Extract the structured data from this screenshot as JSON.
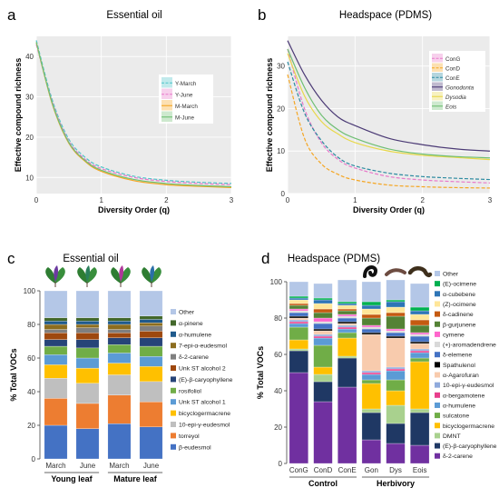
{
  "panels": {
    "a": {
      "label": "a",
      "title": "Essential oil"
    },
    "b": {
      "label": "b",
      "title": "Headspace (PDMS)"
    },
    "c": {
      "label": "c",
      "title": "Essential oil"
    },
    "d": {
      "label": "d",
      "title": "Headspace (PDMS)"
    }
  },
  "chart_data": [
    {
      "id": "a",
      "type": "line",
      "title": "Essential oil",
      "xlabel": "Diversity Order (q)",
      "ylabel": "Effective compound richness",
      "xlim": [
        0,
        3
      ],
      "ylim": [
        6,
        45
      ],
      "xticks": [
        "0",
        "1",
        "2",
        "3"
      ],
      "yticks": [
        "10",
        "20",
        "30",
        "40"
      ],
      "grid": true,
      "legend": "right",
      "x": [
        0,
        0.25,
        0.5,
        0.75,
        1,
        1.5,
        2,
        2.5,
        3
      ],
      "series": [
        {
          "name": "Y-March",
          "color": "#4ec3c9",
          "dash": true,
          "values": [
            44,
            29,
            19.5,
            15,
            12.6,
            10.3,
            9.3,
            8.8,
            8.5
          ]
        },
        {
          "name": "Y-June",
          "color": "#e879c9",
          "dash": true,
          "values": [
            43,
            28.5,
            19,
            14.5,
            12.2,
            10,
            9,
            8.5,
            8.2
          ]
        },
        {
          "name": "M-March",
          "color": "#f5a623",
          "dash": false,
          "values": [
            43.5,
            28,
            18.5,
            14,
            11.5,
            9.2,
            8.2,
            7.8,
            7.5
          ]
        },
        {
          "name": "M-June",
          "color": "#6fbf73",
          "dash": false,
          "values": [
            43.5,
            28.2,
            18.7,
            14.2,
            11.8,
            9.5,
            8.5,
            8,
            7.7
          ]
        }
      ]
    },
    {
      "id": "b",
      "type": "line",
      "title": "Headspace (PDMS)",
      "xlabel": "Diversity Order (q)",
      "ylabel": "Effective compound richness",
      "xlim": [
        0,
        3
      ],
      "ylim": [
        0,
        37
      ],
      "xticks": [
        "0",
        "1",
        "2",
        "3"
      ],
      "yticks": [
        "0",
        "10",
        "20",
        "30"
      ],
      "grid": true,
      "legend": "top-right",
      "x": [
        0,
        0.25,
        0.5,
        0.75,
        1,
        1.5,
        2,
        2.5,
        3
      ],
      "series": [
        {
          "name": "ConG",
          "color": "#e879c9",
          "dash": true,
          "values": [
            34,
            20,
            12,
            8,
            6,
            4,
            3.2,
            2.8,
            2.5
          ]
        },
        {
          "name": "ConD",
          "color": "#f5a623",
          "dash": true,
          "values": [
            28,
            13,
            7,
            4.5,
            3.2,
            2,
            1.6,
            1.4,
            1.3
          ]
        },
        {
          "name": "ConE",
          "color": "#2c8aa0",
          "dash": true,
          "values": [
            31,
            19,
            12.5,
            8.5,
            6.5,
            4.8,
            4,
            3.6,
            3.3
          ]
        },
        {
          "name": "Gonodonta",
          "color": "#4b3a75",
          "dash": false,
          "values": [
            36,
            28,
            22,
            18,
            16,
            13,
            11.5,
            10.5,
            10
          ]
        },
        {
          "name": "Dysodia",
          "color": "#e8d84a",
          "dash": false,
          "values": [
            33,
            23,
            17,
            14,
            12,
            10,
            9,
            8.5,
            8
          ]
        },
        {
          "name": "Eois",
          "color": "#6fbf73",
          "dash": false,
          "values": [
            34,
            25,
            18.5,
            15,
            13,
            10.5,
            9.3,
            8.7,
            8.4
          ]
        }
      ]
    },
    {
      "id": "c",
      "type": "bar",
      "stacked": true,
      "title": "Essential oil",
      "ylabel": "% Total VOCs",
      "ylim": [
        0,
        100
      ],
      "yticks": [
        "0",
        "20",
        "40",
        "60",
        "80",
        "100"
      ],
      "legend": "right",
      "categories": [
        "March",
        "June",
        "March",
        "June"
      ],
      "groups": [
        "Young leaf",
        "Mature leaf"
      ],
      "series": [
        {
          "name": "β-eudesmol",
          "color": "#4472c4",
          "values": [
            20,
            18,
            21,
            19
          ]
        },
        {
          "name": "torreyol",
          "color": "#ed7d31",
          "values": [
            16,
            15,
            17,
            15
          ]
        },
        {
          "name": "10-epi-γ-eudesmol",
          "color": "#bfbfbf",
          "values": [
            12,
            12,
            12,
            12
          ]
        },
        {
          "name": "bicyclogermacrene",
          "color": "#ffc000",
          "values": [
            8,
            9,
            7,
            9
          ]
        },
        {
          "name": "Unk ST alcohol 1",
          "color": "#5b9bd5",
          "values": [
            6,
            6,
            6,
            6
          ]
        },
        {
          "name": "rosifoliol",
          "color": "#70ad47",
          "values": [
            5,
            6,
            5,
            6
          ]
        },
        {
          "name": "(E)-β-caryophyllene",
          "color": "#264478",
          "values": [
            4,
            5,
            4,
            5
          ]
        },
        {
          "name": "Unk ST alcohol 2",
          "color": "#9e480e",
          "values": [
            4,
            4,
            3,
            4
          ]
        },
        {
          "name": "δ-2-carene",
          "color": "#7f7f7f",
          "values": [
            2,
            3,
            2,
            3
          ]
        },
        {
          "name": "7-epi-α-eudesmol",
          "color": "#8c6d1f",
          "values": [
            3,
            2,
            3,
            2
          ]
        },
        {
          "name": "α-humulene",
          "color": "#1f5a8c",
          "values": [
            2,
            2,
            2,
            2
          ]
        },
        {
          "name": "α-pinene",
          "color": "#43682b",
          "values": [
            2,
            2,
            2,
            2
          ]
        },
        {
          "name": "Other",
          "color": "#b4c7e7",
          "values": [
            16,
            16,
            16,
            15
          ]
        }
      ]
    },
    {
      "id": "d",
      "type": "bar",
      "stacked": true,
      "title": "Headspace (PDMS)",
      "ylabel": "% Total VOCs",
      "ylim": [
        0,
        100
      ],
      "yticks": [
        "0",
        "20",
        "40",
        "60",
        "80",
        "100"
      ],
      "legend": "right",
      "categories": [
        "ConG",
        "ConD",
        "ConE",
        "Gon",
        "Dys",
        "Eois"
      ],
      "groups": [
        "Control",
        "Herbivory"
      ],
      "series": [
        {
          "name": "δ-2-carene",
          "color": "#7030a0",
          "values": [
            50,
            34,
            42,
            13,
            11,
            10
          ]
        },
        {
          "name": "(E)-β-caryophyllene",
          "color": "#1f3864",
          "values": [
            12,
            11,
            16,
            15,
            11,
            18
          ]
        },
        {
          "name": "DMNT",
          "color": "#a9d18e",
          "values": [
            1,
            4,
            1,
            2,
            10,
            2
          ]
        },
        {
          "name": "bicyclogermacrene",
          "color": "#ffc000",
          "values": [
            5,
            4,
            10,
            14,
            8,
            26
          ]
        },
        {
          "name": "sulcatone",
          "color": "#70ad47",
          "values": [
            7,
            12,
            3,
            2,
            6,
            2
          ]
        },
        {
          "name": "α-humulene",
          "color": "#5b9bd5",
          "values": [
            2,
            4,
            2,
            3,
            5,
            3
          ]
        },
        {
          "name": "α-bergamotene",
          "color": "#e83e8c",
          "values": [
            1,
            1,
            1,
            1,
            1,
            1
          ]
        },
        {
          "name": "10-epi-γ-eudesmol",
          "color": "#8faadc",
          "values": [
            1,
            1,
            1,
            1,
            1,
            1
          ]
        },
        {
          "name": "α-Agarofuran",
          "color": "#f8cbad",
          "values": [
            1,
            2,
            1,
            20,
            16,
            3
          ]
        },
        {
          "name": "Spathulenol",
          "color": "#000000",
          "values": [
            1,
            1,
            1,
            1,
            1,
            1
          ]
        },
        {
          "name": "δ-elemene",
          "color": "#4472c4",
          "values": [
            2,
            3,
            2,
            2,
            2,
            3
          ]
        },
        {
          "name": "(+)-aromadendrene",
          "color": "#d9d9d9",
          "values": [
            1,
            1,
            1,
            1,
            1,
            1
          ]
        },
        {
          "name": "cymene",
          "color": "#ff66cc",
          "values": [
            1,
            2,
            1,
            1,
            1,
            1
          ]
        },
        {
          "name": "β-gurjunene",
          "color": "#548235",
          "values": [
            2,
            3,
            2,
            4,
            7,
            4
          ]
        },
        {
          "name": "δ-cadinene",
          "color": "#c55a11",
          "values": [
            1,
            2,
            1,
            2,
            2,
            3
          ]
        },
        {
          "name": "(Z)-ocimene",
          "color": "#ffe699",
          "values": [
            2,
            3,
            2,
            3,
            3,
            3
          ]
        },
        {
          "name": "α-cubebene",
          "color": "#2e75b6",
          "values": [
            1,
            2,
            1,
            2,
            3,
            2
          ]
        },
        {
          "name": "(E)-ocimene",
          "color": "#00b050",
          "values": [
            1,
            1,
            1,
            2,
            1,
            2
          ]
        },
        {
          "name": "Other",
          "color": "#b4c7e7",
          "values": [
            8,
            8,
            12,
            11,
            11,
            13
          ]
        }
      ]
    }
  ]
}
